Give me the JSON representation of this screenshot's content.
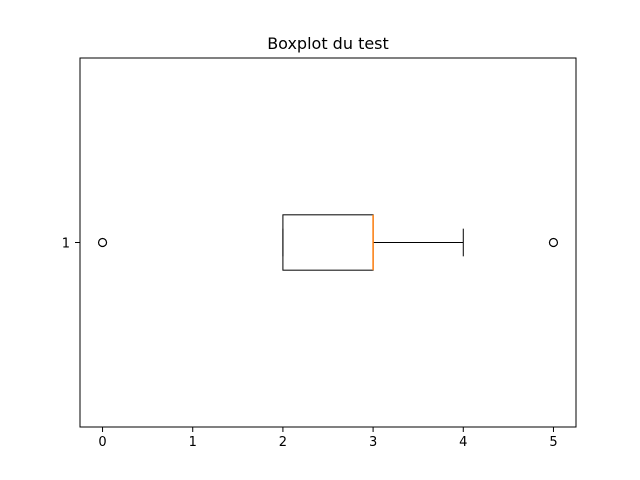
{
  "chart_data": {
    "type": "boxplot",
    "orientation": "horizontal",
    "title": "Boxplot du test",
    "xlabel": "",
    "ylabel": "",
    "xlim": [
      -0.25,
      5.25
    ],
    "x_ticks": [
      "0",
      "1",
      "2",
      "3",
      "4",
      "5"
    ],
    "y_ticks": [
      "1"
    ],
    "grid": false,
    "boxes": [
      {
        "position": 1,
        "label": "1",
        "whisker_low": 2,
        "q1": 2,
        "median": 3,
        "q3": 3,
        "whisker_high": 4,
        "outliers": [
          0,
          5
        ]
      }
    ],
    "colors": {
      "box": "#000000",
      "median": "#ff7f0e",
      "flier": "#000000"
    }
  }
}
